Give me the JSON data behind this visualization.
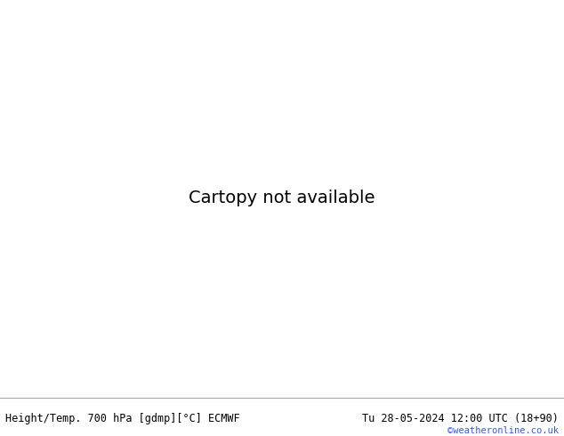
{
  "title_left": "Height/Temp. 700 hPa [gdmp][°C] ECMWF",
  "title_right": "Tu 28-05-2024 12:00 UTC (18+90)",
  "credit": "©weatheronline.co.uk",
  "sea_color": "#d8d8d8",
  "land_color": "#c8f0c0",
  "border_color": "#888888",
  "coast_color": "#888888",
  "height_contour_color": "#000000",
  "temp_neg_color": "#ff0000",
  "temp_zero_color": "#ff00cc",
  "figsize": [
    6.34,
    4.9
  ],
  "dpi": 100,
  "bottom_bar_color": "#e8e8e8",
  "bottom_text_color": "#000000",
  "credit_color": "#3355ff",
  "map_extent": [
    -12.0,
    20.0,
    43.5,
    61.5
  ]
}
